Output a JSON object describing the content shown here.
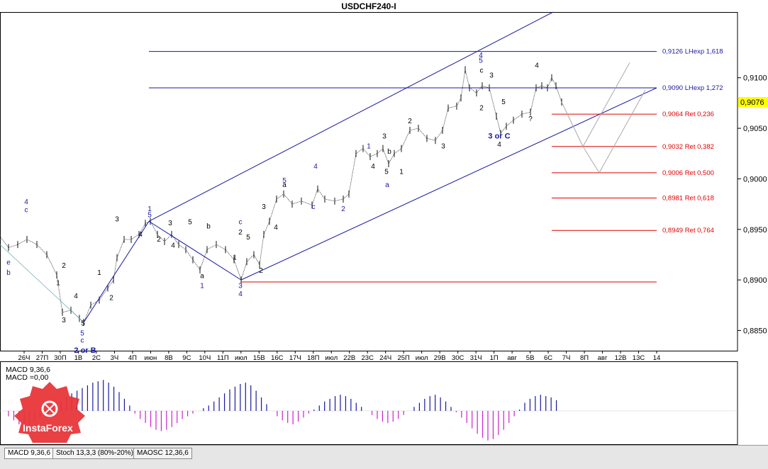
{
  "chart_data": {
    "type": "candlestick",
    "title": "USDCHF240-I",
    "symbol": "USDCHF",
    "timeframe": "240",
    "current_price": 0.9076,
    "price_labels": [
      "0,9100",
      "0,9050",
      "0,9000",
      "0,8950",
      "0,8900",
      "0,8850"
    ],
    "price_values": [
      0.91,
      0.905,
      0.9,
      0.895,
      0.89,
      0.885
    ],
    "ylim": [
      0.883,
      0.9165
    ],
    "current_price_label": "0,9076",
    "x_ticks": [
      "26Ч",
      "27П",
      "30П",
      "1В",
      "2С",
      "3Ч",
      "4П",
      "июн",
      "8В",
      "9С",
      "10Ч",
      "11П",
      "июл",
      "15В",
      "16С",
      "17Ч",
      "18П",
      "июл",
      "22В",
      "23С",
      "24Ч",
      "25П",
      "июл",
      "29В",
      "30С",
      "31Ч",
      "1П",
      "авг",
      "5В",
      "6С",
      "7Ч",
      "8П",
      "авг",
      "12В",
      "13С",
      "14"
    ],
    "levels": [
      {
        "label": "0,9126 LHexp 1,618",
        "value": 0.9126,
        "color": "#1818a0"
      },
      {
        "label": "0,9090 LHexp 1,272",
        "value": 0.909,
        "color": "#1818a0"
      },
      {
        "label": "0,9064 Ret 0,236",
        "value": 0.9064,
        "color": "#e00000"
      },
      {
        "label": "0,9032 Ret 0,382",
        "value": 0.9032,
        "color": "#e00000"
      },
      {
        "label": "0,9006 Ret 0,500",
        "value": 0.9006,
        "color": "#e00000"
      },
      {
        "label": "0,8981 Ret 0,618",
        "value": 0.8981,
        "color": "#e00000"
      },
      {
        "label": "0,8949 Ret 0,764",
        "value": 0.8949,
        "color": "#e00000"
      }
    ],
    "wave_labels": [
      "4",
      "c",
      "e",
      "b",
      "2",
      "1",
      "3",
      "5",
      "4",
      "c",
      "5",
      "2 or B",
      "1",
      "2",
      "3",
      "4",
      "5",
      "1",
      "2",
      "3",
      "4",
      "5",
      "a",
      "1",
      "b",
      "c",
      "2",
      "3",
      "4",
      "5",
      "1",
      "2",
      "3",
      "4",
      "5",
      "a",
      "c",
      "4",
      "2",
      "1",
      "3",
      "4",
      "5",
      "a",
      "b",
      "1",
      "2",
      "3",
      "4",
      "5",
      "c",
      "2",
      "3",
      "4",
      "3 or C",
      "5",
      "?",
      "4"
    ],
    "macd": {
      "label_line1": "MACD 9,36,6",
      "label_line2": "MACD =0,00"
    }
  },
  "colors": {
    "wave_blue": "#1818a0",
    "fib_red": "#e00000",
    "macd_bar_pos": "#1818a0",
    "macd_bar_neg": "#cc22cc",
    "current_price_bg": "#ffff00"
  },
  "tabs": [
    "MACD 9,36,6",
    "Stoch 13,3,3 (80%-20%)",
    "MAOSC 12,36,6"
  ],
  "logo": {
    "text": "InstaForex"
  }
}
